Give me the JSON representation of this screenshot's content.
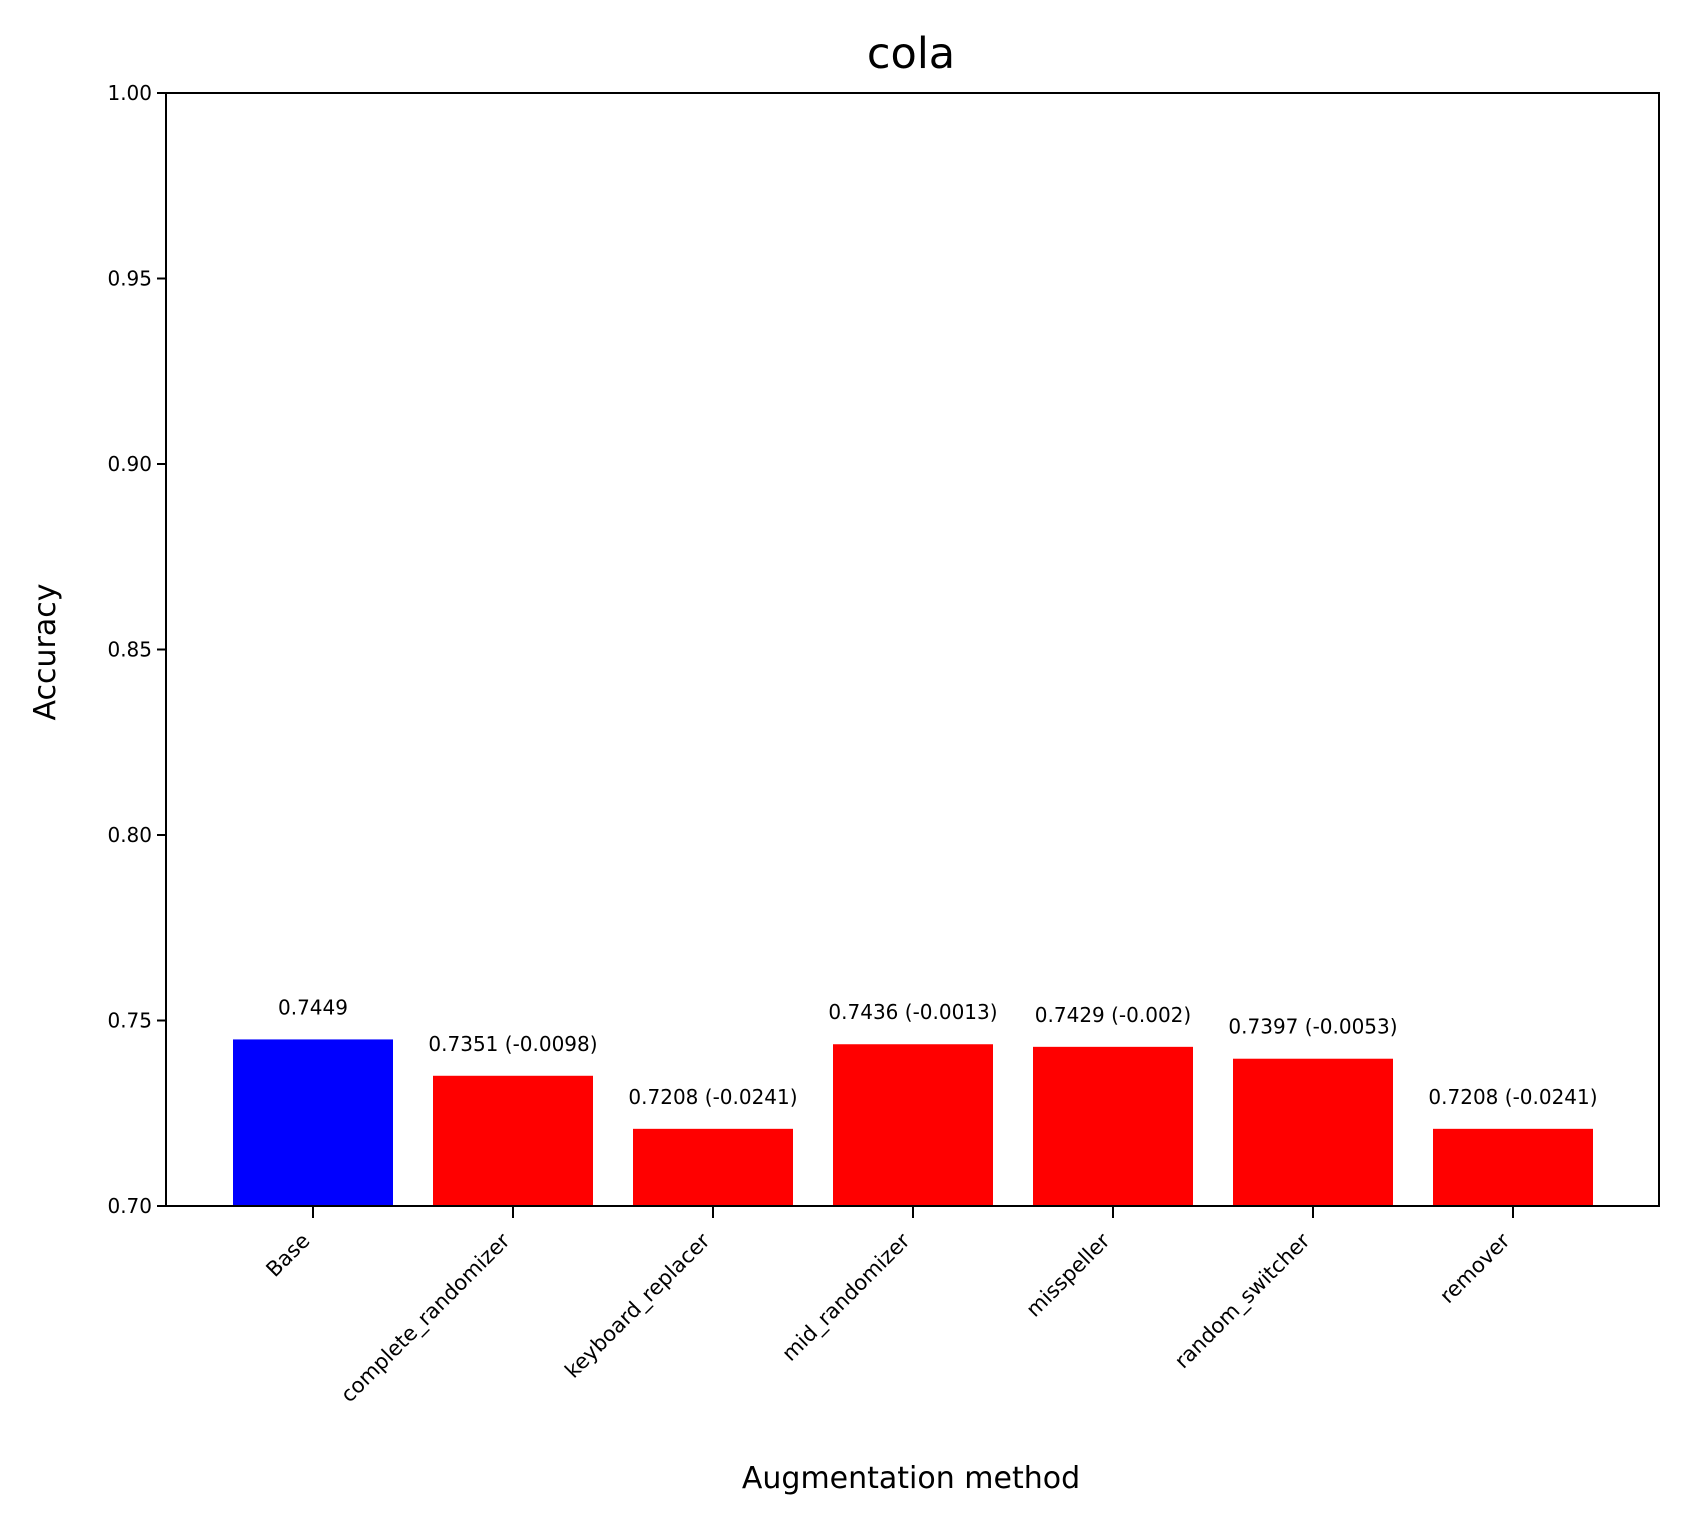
{
  "chart_data": {
    "type": "bar",
    "title": "cola",
    "xlabel": "Augmentation method",
    "ylabel": "Accuracy",
    "ylim": [
      0.7,
      1.0
    ],
    "yticks": [
      "0.70",
      "0.75",
      "0.80",
      "0.85",
      "0.90",
      "0.95",
      "1.00"
    ],
    "grid": false,
    "legend": "none",
    "categories": [
      "Base",
      "complete_randomizer",
      "keyboard_replacer",
      "mid_randomizer",
      "misspeller",
      "random_switcher",
      "remover"
    ],
    "values": [
      0.7449,
      0.7351,
      0.7208,
      0.7436,
      0.7429,
      0.7397,
      0.7208
    ],
    "data_labels": [
      "0.7449",
      "0.7351 (-0.0098)",
      "0.7208 (-0.0241)",
      "0.7436 (-0.0013)",
      "0.7429 (-0.002)",
      "0.7397 (-0.0053)",
      "0.7208 (-0.0241)"
    ],
    "colors": [
      "#0000ff",
      "#ff0000",
      "#ff0000",
      "#ff0000",
      "#ff0000",
      "#ff0000",
      "#ff0000"
    ]
  }
}
